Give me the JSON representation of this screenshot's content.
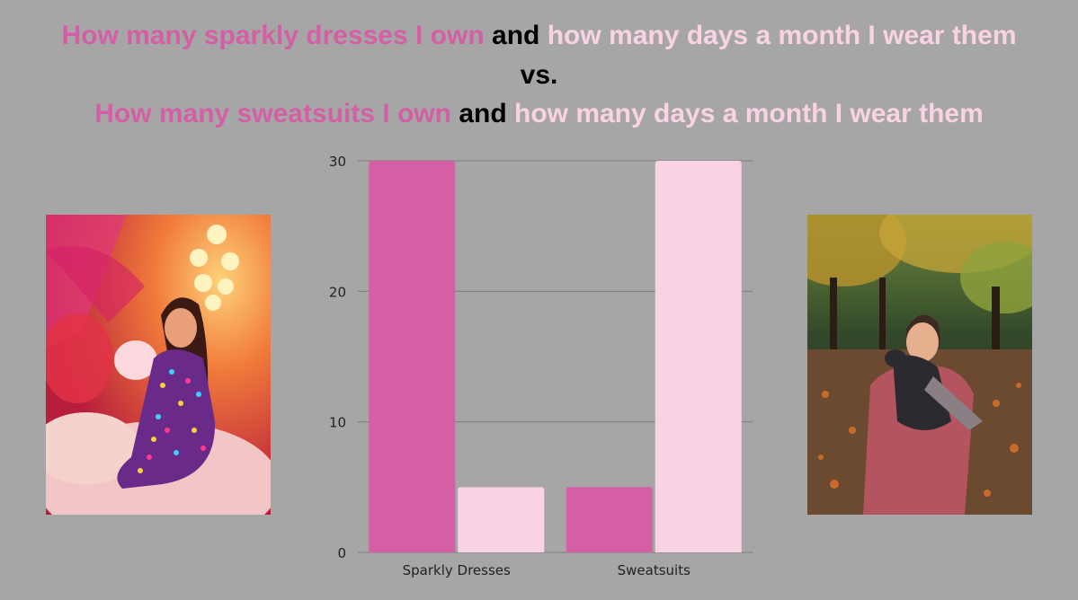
{
  "title": {
    "line1": {
      "part1": "How many sparkly dresses I own",
      "part2": "and",
      "part3": "how many days a month I wear them"
    },
    "line2": "vs.",
    "line3": {
      "part1": "How many sweatsuits I own",
      "part2": "and",
      "part3": "how many days a month I wear them"
    }
  },
  "colors": {
    "background": "#a6a6a6",
    "dark_pink": "#d45fa5",
    "light_pink": "#f9d3e3",
    "black": "#000000"
  },
  "chart_data": {
    "type": "bar",
    "categories": [
      "Sparkly Dresses",
      "Sweatsuits"
    ],
    "series": [
      {
        "values": [
          30,
          5
        ],
        "color": "#d45fa5"
      },
      {
        "values": [
          5,
          30
        ],
        "color": "#f9d3e3"
      }
    ],
    "ylim": [
      0,
      30
    ],
    "yticks": [
      0,
      10,
      20,
      30
    ],
    "grid": true,
    "legend": "none"
  }
}
